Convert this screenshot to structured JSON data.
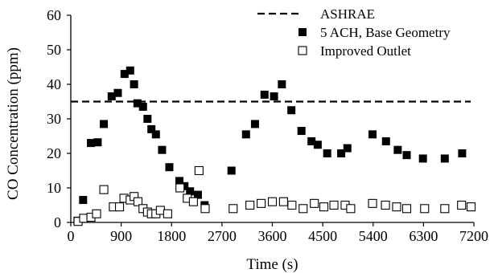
{
  "chart_data": {
    "type": "scatter",
    "xlabel": "Time (s)",
    "ylabel": "CO Concentration (ppm)",
    "xlim": [
      0,
      7200
    ],
    "ylim": [
      0,
      60
    ],
    "xticks": [
      0,
      900,
      1800,
      2700,
      3600,
      4500,
      5400,
      6300,
      7200
    ],
    "yticks": [
      0,
      10,
      20,
      30,
      40,
      50,
      60
    ],
    "grid": false,
    "legend_position": "top-right",
    "reference_line": {
      "name": "ASHRAE",
      "y": 35,
      "style": "dashed"
    },
    "series": [
      {
        "name": "5 ACH, Base Geometry",
        "marker": "filled-square",
        "color": "#000000",
        "points": [
          [
            120,
            0.5
          ],
          [
            220,
            6.5
          ],
          [
            360,
            23
          ],
          [
            480,
            23.2
          ],
          [
            590,
            28.5
          ],
          [
            730,
            36.5
          ],
          [
            840,
            37.5
          ],
          [
            960,
            43
          ],
          [
            1060,
            44
          ],
          [
            1130,
            40
          ],
          [
            1190,
            34.5
          ],
          [
            1290,
            33.5
          ],
          [
            1370,
            30
          ],
          [
            1440,
            27
          ],
          [
            1520,
            25.5
          ],
          [
            1630,
            21
          ],
          [
            1760,
            16
          ],
          [
            1940,
            12
          ],
          [
            2030,
            10.5
          ],
          [
            2130,
            9
          ],
          [
            2270,
            8
          ],
          [
            2390,
            5
          ],
          [
            2870,
            15
          ],
          [
            3130,
            25.5
          ],
          [
            3290,
            28.5
          ],
          [
            3460,
            37
          ],
          [
            3630,
            36.5
          ],
          [
            3770,
            40
          ],
          [
            3940,
            32.5
          ],
          [
            4120,
            26.5
          ],
          [
            4300,
            23.5
          ],
          [
            4410,
            22.5
          ],
          [
            4580,
            20
          ],
          [
            4830,
            20
          ],
          [
            4940,
            21.5
          ],
          [
            5390,
            25.5
          ],
          [
            5630,
            23.5
          ],
          [
            5840,
            21
          ],
          [
            6000,
            19.5
          ],
          [
            6290,
            18.5
          ],
          [
            6680,
            18.5
          ],
          [
            6990,
            20
          ]
        ]
      },
      {
        "name": "Improved Outlet",
        "marker": "open-square",
        "color": "#000000",
        "points": [
          [
            130,
            0.3
          ],
          [
            230,
            1.2
          ],
          [
            360,
            1.5
          ],
          [
            460,
            2.5
          ],
          [
            590,
            9.5
          ],
          [
            760,
            4.5
          ],
          [
            870,
            4.5
          ],
          [
            950,
            7
          ],
          [
            1060,
            6.5
          ],
          [
            1130,
            7.5
          ],
          [
            1200,
            6
          ],
          [
            1290,
            4
          ],
          [
            1370,
            3
          ],
          [
            1440,
            2.5
          ],
          [
            1520,
            2.5
          ],
          [
            1600,
            3.5
          ],
          [
            1730,
            2.5
          ],
          [
            1950,
            10
          ],
          [
            2080,
            7
          ],
          [
            2190,
            6
          ],
          [
            2290,
            15
          ],
          [
            2400,
            4
          ],
          [
            2900,
            4
          ],
          [
            3200,
            5
          ],
          [
            3400,
            5.5
          ],
          [
            3600,
            6
          ],
          [
            3800,
            6
          ],
          [
            3950,
            5
          ],
          [
            4150,
            4
          ],
          [
            4350,
            5.5
          ],
          [
            4520,
            4.5
          ],
          [
            4700,
            5
          ],
          [
            4900,
            5
          ],
          [
            5000,
            4
          ],
          [
            5390,
            5.5
          ],
          [
            5620,
            5
          ],
          [
            5820,
            4.5
          ],
          [
            6000,
            4
          ],
          [
            6320,
            4
          ],
          [
            6680,
            4
          ],
          [
            6980,
            5
          ],
          [
            7150,
            4.5
          ]
        ]
      }
    ]
  }
}
